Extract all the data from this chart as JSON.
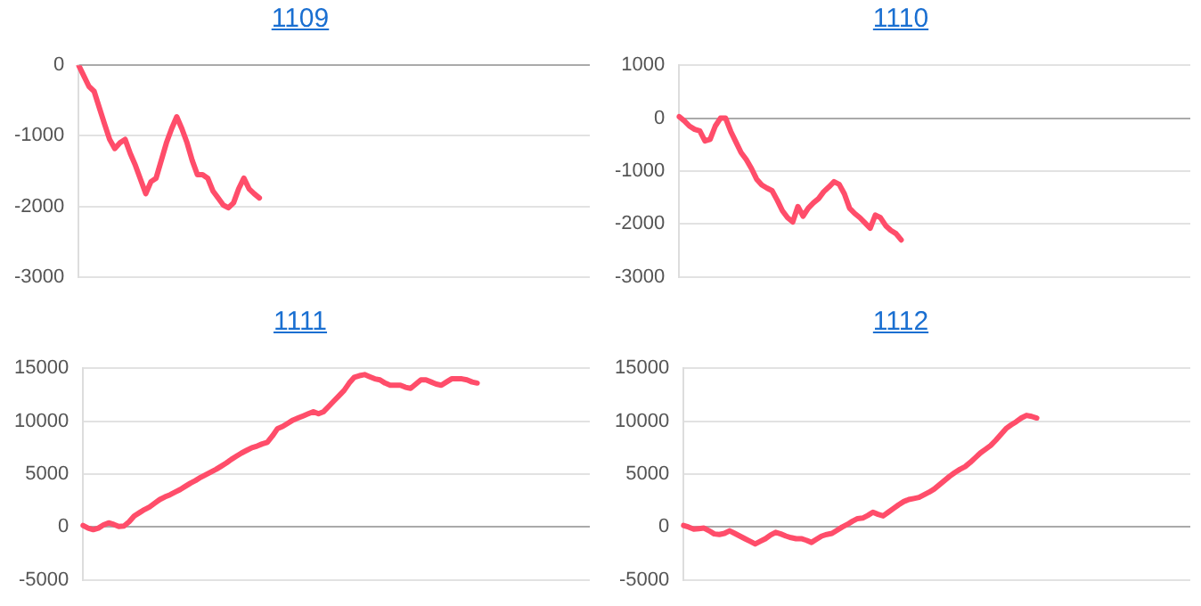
{
  "chart_data": [
    {
      "type": "line",
      "title": "1109",
      "categories": [
        null,
        null,
        null,
        null,
        null,
        null,
        null,
        null,
        null,
        null,
        null,
        null,
        null,
        null,
        null,
        null,
        null,
        null,
        null,
        null,
        null,
        null,
        null,
        null,
        null,
        null,
        null,
        null,
        null,
        null,
        null,
        null,
        null,
        null,
        null,
        null,
        null,
        null,
        null,
        null,
        null,
        null,
        null,
        null,
        null,
        null,
        null,
        null,
        null,
        null,
        null,
        null,
        null,
        null,
        null,
        null,
        null,
        null,
        null,
        null,
        null,
        null,
        null,
        null,
        null,
        null,
        null,
        null,
        null,
        null,
        null,
        null,
        null,
        null,
        null,
        null,
        null,
        null,
        null,
        null,
        null,
        null,
        null,
        null,
        null,
        null,
        null,
        null,
        null,
        null,
        null,
        null,
        null,
        null,
        null,
        null,
        null,
        null,
        null,
        null
      ],
      "series": [
        {
          "color": "#ff4d6a",
          "values": [
            0,
            -150,
            -300,
            -370,
            -600,
            -830,
            -1050,
            -1180,
            -1100,
            -1050,
            -1250,
            -1420,
            -1620,
            -1820,
            -1650,
            -1600,
            -1350,
            -1100,
            -900,
            -730,
            -900,
            -1100,
            -1350,
            -1550,
            -1550,
            -1600,
            -1780,
            -1880,
            -1980,
            -2020,
            -1950,
            -1750,
            -1600,
            -1750,
            -1820,
            -1880,
            null,
            null,
            null,
            null,
            null,
            null,
            null,
            null,
            null,
            null,
            null,
            null,
            null,
            null,
            null,
            null,
            null,
            null,
            null,
            null,
            null,
            null,
            null,
            null,
            null,
            null,
            null,
            null,
            null,
            null,
            null,
            null,
            null,
            null,
            null,
            null,
            null,
            null,
            null,
            null,
            null,
            null,
            null,
            null,
            null,
            null,
            null,
            null,
            null,
            null,
            null,
            null,
            null,
            null,
            null,
            null,
            null,
            null,
            null,
            null,
            null,
            null,
            null,
            null
          ]
        }
      ],
      "ylim": [
        -3000,
        0
      ],
      "yticks": [
        -3000,
        -2000,
        -1000,
        0
      ],
      "grid": "y",
      "tick_labels": "y",
      "legend": false,
      "marker": "none"
    },
    {
      "type": "line",
      "title": "1110",
      "categories": [
        null,
        null,
        null,
        null,
        null,
        null,
        null,
        null,
        null,
        null,
        null,
        null,
        null,
        null,
        null,
        null,
        null,
        null,
        null,
        null,
        null,
        null,
        null,
        null,
        null,
        null,
        null,
        null,
        null,
        null,
        null,
        null,
        null,
        null,
        null,
        null,
        null,
        null,
        null,
        null,
        null,
        null,
        null,
        null,
        null,
        null,
        null,
        null,
        null,
        null,
        null,
        null,
        null,
        null,
        null,
        null,
        null,
        null,
        null,
        null,
        null,
        null,
        null,
        null,
        null,
        null,
        null,
        null,
        null,
        null,
        null,
        null,
        null,
        null,
        null,
        null,
        null,
        null,
        null,
        null,
        null,
        null,
        null,
        null,
        null,
        null,
        null,
        null,
        null,
        null,
        null,
        null,
        null,
        null,
        null,
        null,
        null,
        null,
        null,
        null
      ],
      "series": [
        {
          "color": "#ff4d6a",
          "values": [
            30,
            -50,
            -150,
            -210,
            -240,
            -430,
            -400,
            -150,
            0,
            0,
            -250,
            -450,
            -650,
            -780,
            -950,
            -1150,
            -1260,
            -1320,
            -1370,
            -1550,
            -1750,
            -1880,
            -1960,
            -1670,
            -1850,
            -1700,
            -1600,
            -1520,
            -1390,
            -1300,
            -1200,
            -1250,
            -1430,
            -1700,
            -1800,
            -1880,
            -1980,
            -2080,
            -1830,
            -1880,
            -2030,
            -2120,
            -2180,
            -2300,
            null,
            null,
            null,
            null,
            null,
            null,
            null,
            null,
            null,
            null,
            null,
            null,
            null,
            null,
            null,
            null,
            null,
            null,
            null,
            null,
            null,
            null,
            null,
            null,
            null,
            null,
            null,
            null,
            null,
            null,
            null,
            null,
            null,
            null,
            null,
            null,
            null,
            null,
            null,
            null,
            null,
            null,
            null,
            null,
            null,
            null,
            null,
            null,
            null,
            null,
            null,
            null,
            null,
            null,
            null,
            null
          ]
        }
      ],
      "ylim": [
        -3000,
        1000
      ],
      "yticks": [
        -3000,
        -2000,
        -1000,
        0,
        1000
      ],
      "grid": "y",
      "tick_labels": "y",
      "legend": false,
      "marker": "none"
    },
    {
      "type": "line",
      "title": "1111",
      "categories": [
        null,
        null,
        null,
        null,
        null,
        null,
        null,
        null,
        null,
        null,
        null,
        null,
        null,
        null,
        null,
        null,
        null,
        null,
        null,
        null,
        null,
        null,
        null,
        null,
        null,
        null,
        null,
        null,
        null,
        null,
        null,
        null,
        null,
        null,
        null,
        null,
        null,
        null,
        null,
        null,
        null,
        null,
        null,
        null,
        null,
        null,
        null,
        null,
        null,
        null,
        null,
        null,
        null,
        null,
        null,
        null,
        null,
        null,
        null,
        null,
        null,
        null,
        null,
        null,
        null,
        null,
        null,
        null,
        null,
        null,
        null,
        null,
        null,
        null,
        null,
        null,
        null,
        null,
        null,
        null,
        null,
        null,
        null,
        null,
        null,
        null,
        null,
        null,
        null,
        null,
        null,
        null,
        null,
        null,
        null,
        null,
        null,
        null,
        null,
        null
      ],
      "series": [
        {
          "color": "#ff4d6a",
          "values": [
            150,
            -100,
            -250,
            -100,
            200,
            400,
            250,
            50,
            100,
            500,
            1050,
            1350,
            1650,
            1900,
            2250,
            2600,
            2850,
            3050,
            3300,
            3550,
            3850,
            4150,
            4400,
            4700,
            4950,
            5200,
            5450,
            5750,
            6050,
            6400,
            6700,
            7000,
            7250,
            7500,
            7650,
            7850,
            8000,
            8600,
            9300,
            9500,
            9800,
            10100,
            10300,
            10500,
            10700,
            10900,
            10700,
            10900,
            11400,
            11900,
            12400,
            12900,
            13600,
            14150,
            14300,
            14400,
            14200,
            14000,
            13900,
            13600,
            13400,
            13400,
            13400,
            13200,
            13100,
            13500,
            13900,
            13900,
            13700,
            13500,
            13400,
            13700,
            14000,
            14000,
            14000,
            13900,
            13700,
            13600,
            null,
            null,
            null,
            null,
            null,
            null,
            null,
            null,
            null,
            null,
            null,
            null,
            null,
            null,
            null,
            null,
            null,
            null,
            null,
            null,
            null,
            null
          ]
        }
      ],
      "ylim": [
        -5000,
        15000
      ],
      "yticks": [
        -5000,
        0,
        5000,
        10000,
        15000
      ],
      "grid": "y",
      "tick_labels": "y",
      "legend": false,
      "marker": "none"
    },
    {
      "type": "line",
      "title": "1112",
      "categories": [
        null,
        null,
        null,
        null,
        null,
        null,
        null,
        null,
        null,
        null,
        null,
        null,
        null,
        null,
        null,
        null,
        null,
        null,
        null,
        null,
        null,
        null,
        null,
        null,
        null,
        null,
        null,
        null,
        null,
        null,
        null,
        null,
        null,
        null,
        null,
        null,
        null,
        null,
        null,
        null,
        null,
        null,
        null,
        null,
        null,
        null,
        null,
        null,
        null,
        null,
        null,
        null,
        null,
        null,
        null,
        null,
        null,
        null,
        null,
        null,
        null,
        null,
        null,
        null,
        null,
        null,
        null,
        null,
        null,
        null,
        null,
        null,
        null,
        null,
        null,
        null,
        null,
        null,
        null,
        null,
        null,
        null,
        null,
        null,
        null,
        null,
        null,
        null,
        null,
        null,
        null,
        null,
        null,
        null,
        null,
        null,
        null,
        null,
        null,
        null
      ],
      "series": [
        {
          "color": "#ff4d6a",
          "values": [
            150,
            0,
            -200,
            -150,
            -100,
            -350,
            -650,
            -700,
            -600,
            -350,
            -600,
            -850,
            -1100,
            -1350,
            -1600,
            -1350,
            -1100,
            -750,
            -500,
            -650,
            -850,
            -1000,
            -1100,
            -1100,
            -1250,
            -1450,
            -1150,
            -850,
            -700,
            -600,
            -300,
            0,
            250,
            550,
            800,
            850,
            1100,
            1400,
            1200,
            1050,
            1400,
            1750,
            2100,
            2400,
            2600,
            2700,
            2800,
            3050,
            3300,
            3600,
            4000,
            4400,
            4800,
            5150,
            5450,
            5700,
            6100,
            6550,
            7000,
            7350,
            7700,
            8200,
            8750,
            9300,
            9650,
            9950,
            10300,
            10550,
            10450,
            10300,
            null,
            null,
            null,
            null,
            null,
            null,
            null,
            null,
            null,
            null,
            null,
            null,
            null,
            null,
            null,
            null,
            null,
            null,
            null,
            null,
            null,
            null,
            null,
            null,
            null,
            null,
            null,
            null,
            null,
            null
          ]
        }
      ],
      "ylim": [
        -5000,
        15000
      ],
      "yticks": [
        -5000,
        0,
        5000,
        10000,
        15000
      ],
      "grid": "y",
      "tick_labels": "y",
      "legend": false,
      "marker": "none"
    }
  ]
}
